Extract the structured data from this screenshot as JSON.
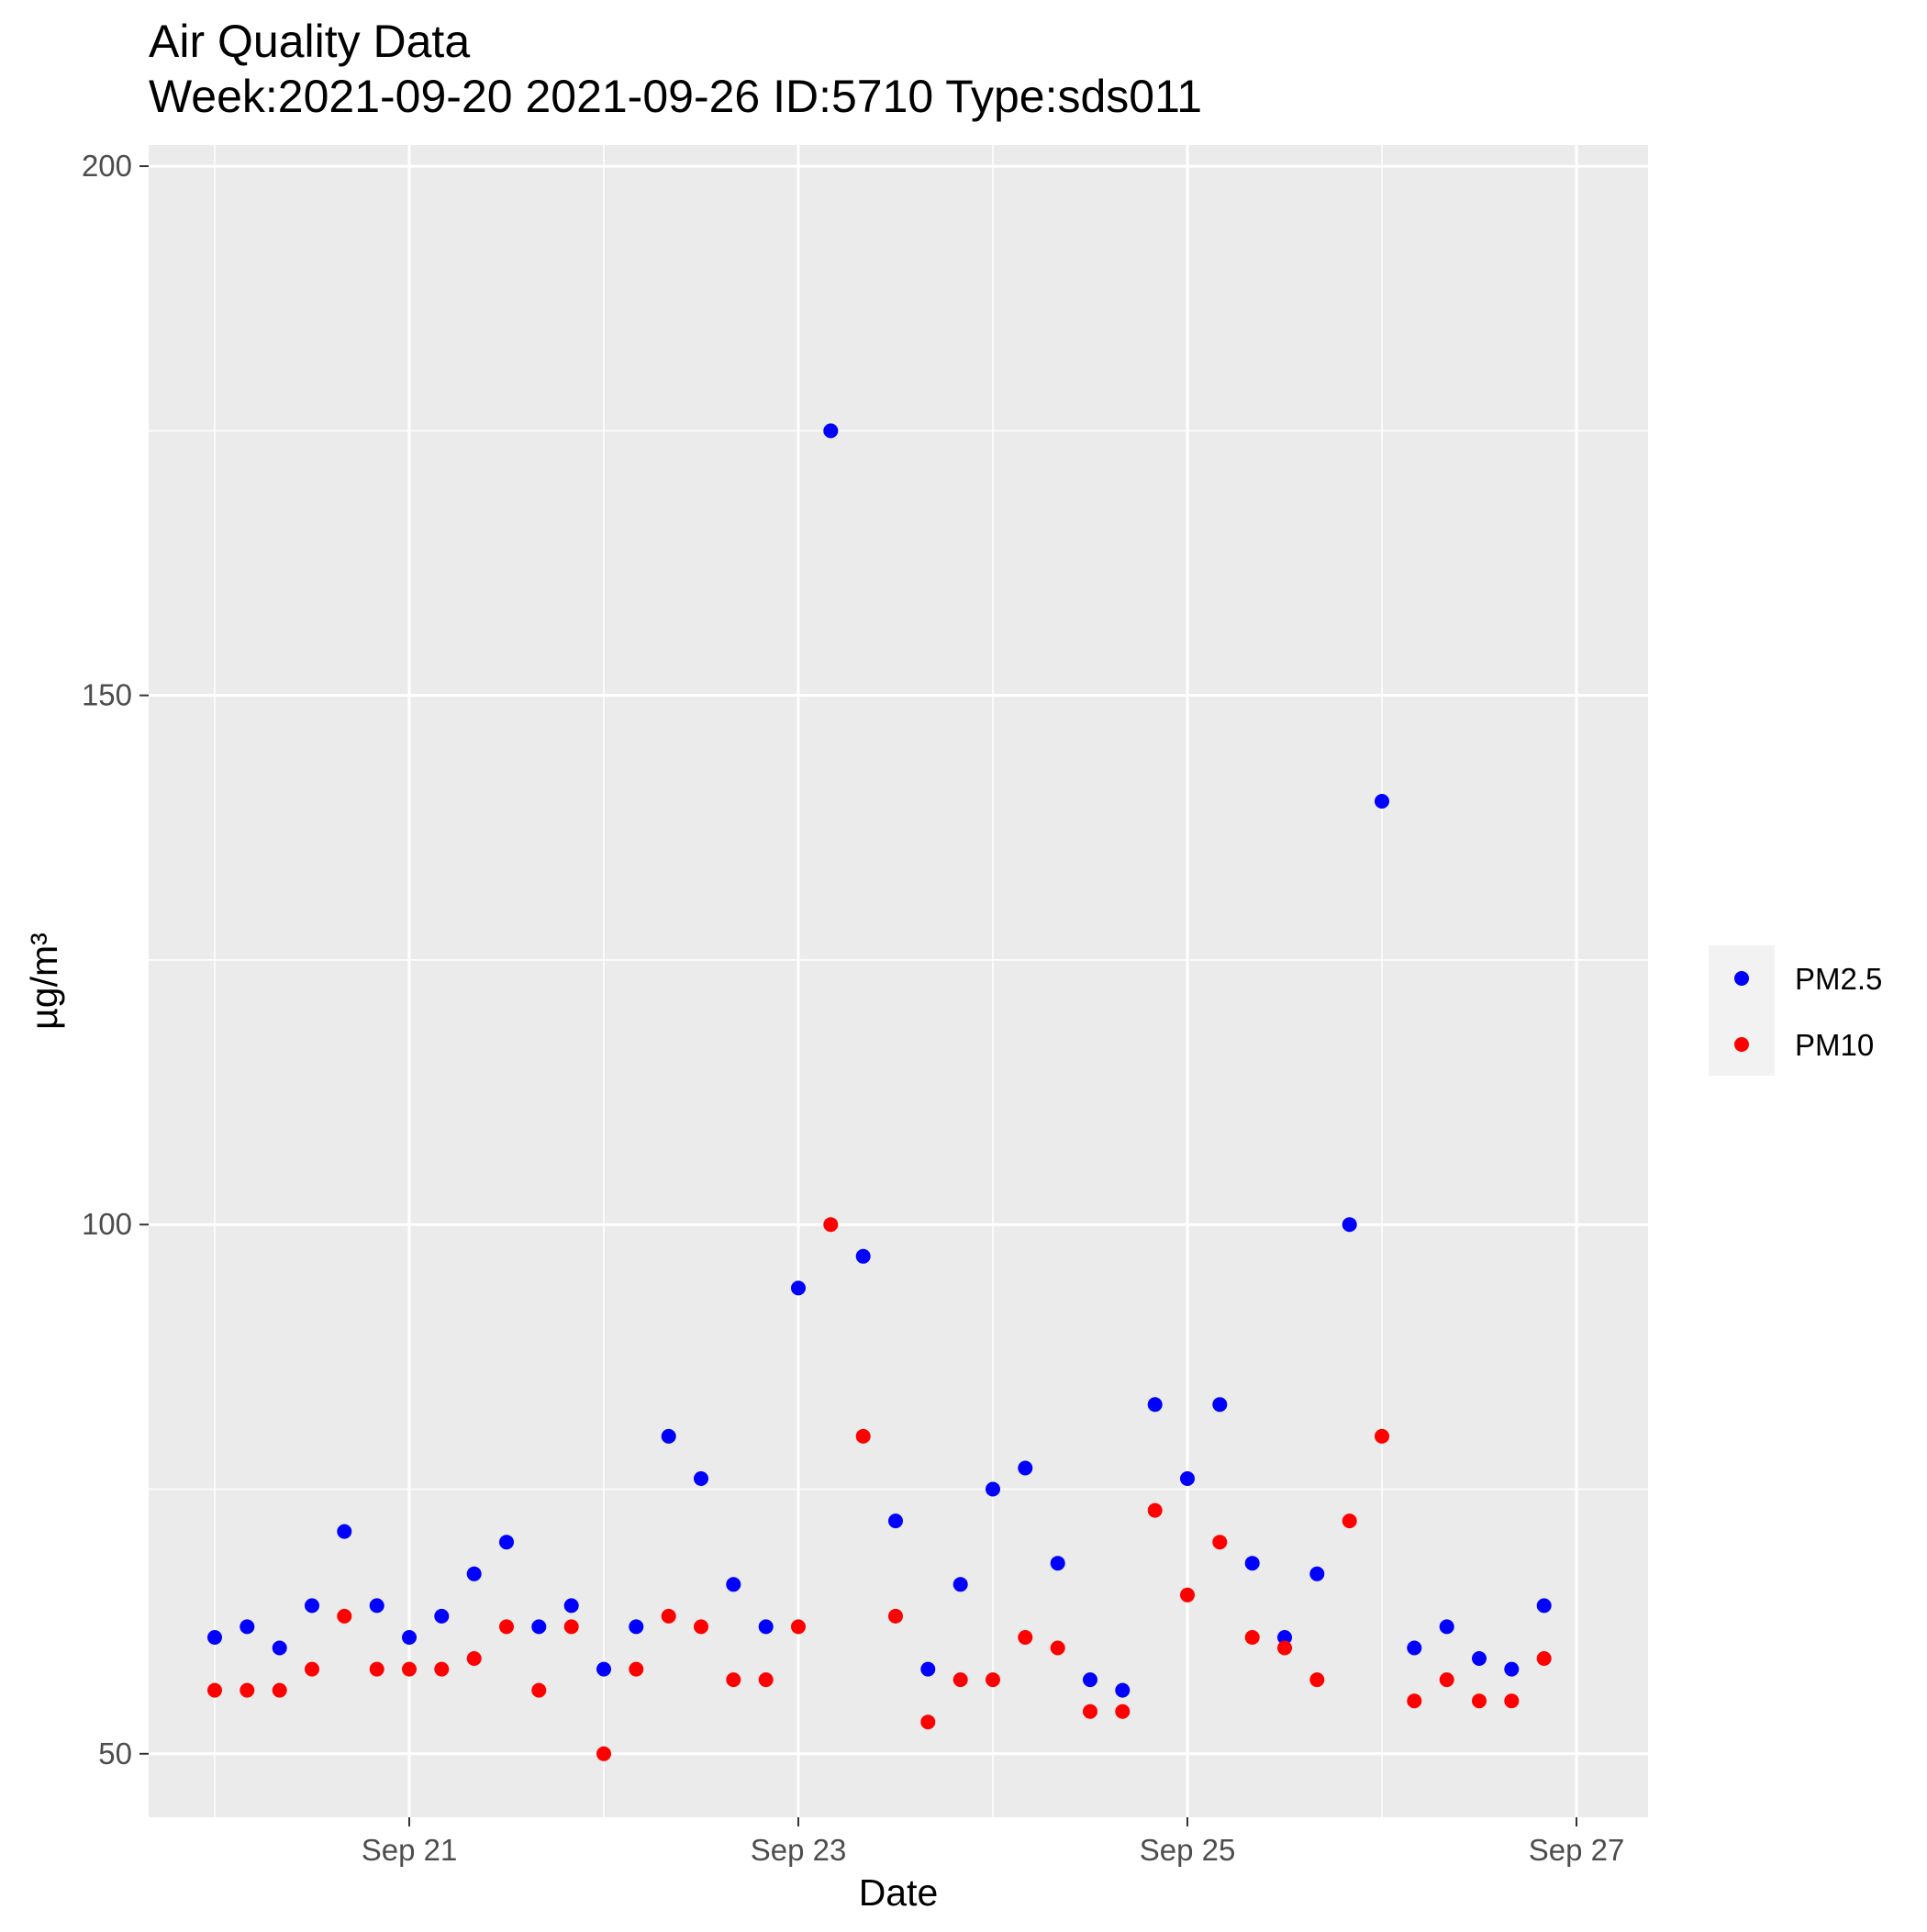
{
  "chart_data": {
    "type": "scatter",
    "title": "Air Quality Data",
    "subtitle": "Week:2021-09-20 2021-09-26 ID:5710 Type:sds011",
    "xlabel": "Date",
    "ylabel": "µg/m³",
    "xlim": [
      "2021-09-20 00:00",
      "2021-09-27 00:00"
    ],
    "ylim": [
      44,
      202
    ],
    "x_ticks": [
      {
        "at": "2021-09-21 00:00",
        "label": "Sep 21"
      },
      {
        "at": "2021-09-23 00:00",
        "label": "Sep 23"
      },
      {
        "at": "2021-09-25 00:00",
        "label": "Sep 25"
      },
      {
        "at": "2021-09-27 00:00",
        "label": "Sep 27"
      }
    ],
    "x_minor_gridlines": [
      "2021-09-20 00:00",
      "2021-09-22 00:00",
      "2021-09-24 00:00",
      "2021-09-26 00:00"
    ],
    "y_ticks": [
      50,
      100,
      150,
      200
    ],
    "y_minor_gridlines": [
      75,
      125,
      175
    ],
    "grid": true,
    "background": "#ebebeb",
    "legend_position": "right",
    "series": [
      {
        "name": "PM2.5",
        "color": "#0000ff",
        "points": [
          [
            "2021-09-20 00:00",
            61
          ],
          [
            "2021-09-20 04:00",
            62
          ],
          [
            "2021-09-20 08:00",
            60
          ],
          [
            "2021-09-20 12:00",
            64
          ],
          [
            "2021-09-20 16:00",
            71
          ],
          [
            "2021-09-20 20:00",
            64
          ],
          [
            "2021-09-21 00:00",
            61
          ],
          [
            "2021-09-21 04:00",
            63
          ],
          [
            "2021-09-21 08:00",
            67
          ],
          [
            "2021-09-21 12:00",
            70
          ],
          [
            "2021-09-21 16:00",
            62
          ],
          [
            "2021-09-21 20:00",
            64
          ],
          [
            "2021-09-22 00:00",
            58
          ],
          [
            "2021-09-22 04:00",
            62
          ],
          [
            "2021-09-22 08:00",
            80
          ],
          [
            "2021-09-22 12:00",
            76
          ],
          [
            "2021-09-22 16:00",
            66
          ],
          [
            "2021-09-22 20:00",
            62
          ],
          [
            "2021-09-23 00:00",
            94
          ],
          [
            "2021-09-23 04:00",
            175
          ],
          [
            "2021-09-23 08:00",
            97
          ],
          [
            "2021-09-23 12:00",
            72
          ],
          [
            "2021-09-23 16:00",
            58
          ],
          [
            "2021-09-23 20:00",
            66
          ],
          [
            "2021-09-24 00:00",
            75
          ],
          [
            "2021-09-24 04:00",
            77
          ],
          [
            "2021-09-24 08:00",
            68
          ],
          [
            "2021-09-24 12:00",
            57
          ],
          [
            "2021-09-24 16:00",
            56
          ],
          [
            "2021-09-24 20:00",
            83
          ],
          [
            "2021-09-25 00:00",
            76
          ],
          [
            "2021-09-25 04:00",
            83
          ],
          [
            "2021-09-25 08:00",
            68
          ],
          [
            "2021-09-25 12:00",
            61
          ],
          [
            "2021-09-25 16:00",
            67
          ],
          [
            "2021-09-25 20:00",
            100
          ],
          [
            "2021-09-26 00:00",
            140
          ],
          [
            "2021-09-26 04:00",
            60
          ],
          [
            "2021-09-26 08:00",
            62
          ],
          [
            "2021-09-26 12:00",
            59
          ],
          [
            "2021-09-26 16:00",
            58
          ],
          [
            "2021-09-26 20:00",
            64
          ]
        ]
      },
      {
        "name": "PM10",
        "color": "#ff0000",
        "points": [
          [
            "2021-09-20 00:00",
            56
          ],
          [
            "2021-09-20 04:00",
            56
          ],
          [
            "2021-09-20 08:00",
            56
          ],
          [
            "2021-09-20 12:00",
            58
          ],
          [
            "2021-09-20 16:00",
            63
          ],
          [
            "2021-09-20 20:00",
            58
          ],
          [
            "2021-09-21 00:00",
            58
          ],
          [
            "2021-09-21 04:00",
            58
          ],
          [
            "2021-09-21 08:00",
            59
          ],
          [
            "2021-09-21 12:00",
            62
          ],
          [
            "2021-09-21 16:00",
            56
          ],
          [
            "2021-09-21 20:00",
            62
          ],
          [
            "2021-09-22 00:00",
            50
          ],
          [
            "2021-09-22 04:00",
            58
          ],
          [
            "2021-09-22 08:00",
            63
          ],
          [
            "2021-09-22 12:00",
            62
          ],
          [
            "2021-09-22 16:00",
            57
          ],
          [
            "2021-09-22 20:00",
            57
          ],
          [
            "2021-09-23 00:00",
            62
          ],
          [
            "2021-09-23 04:00",
            100
          ],
          [
            "2021-09-23 08:00",
            80
          ],
          [
            "2021-09-23 12:00",
            63
          ],
          [
            "2021-09-23 16:00",
            53
          ],
          [
            "2021-09-23 20:00",
            57
          ],
          [
            "2021-09-24 00:00",
            57
          ],
          [
            "2021-09-24 04:00",
            61
          ],
          [
            "2021-09-24 08:00",
            60
          ],
          [
            "2021-09-24 12:00",
            54
          ],
          [
            "2021-09-24 16:00",
            54
          ],
          [
            "2021-09-24 20:00",
            73
          ],
          [
            "2021-09-25 00:00",
            65
          ],
          [
            "2021-09-25 04:00",
            70
          ],
          [
            "2021-09-25 08:00",
            61
          ],
          [
            "2021-09-25 12:00",
            60
          ],
          [
            "2021-09-25 16:00",
            57
          ],
          [
            "2021-09-25 20:00",
            72
          ],
          [
            "2021-09-26 00:00",
            80
          ],
          [
            "2021-09-26 04:00",
            55
          ],
          [
            "2021-09-26 08:00",
            57
          ],
          [
            "2021-09-26 12:00",
            55
          ],
          [
            "2021-09-26 16:00",
            55
          ],
          [
            "2021-09-26 20:00",
            59
          ]
        ]
      }
    ]
  }
}
